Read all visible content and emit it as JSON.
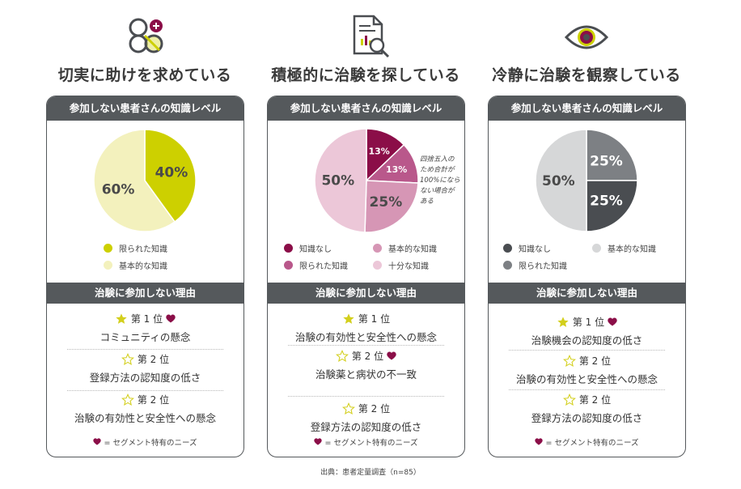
{
  "colors": {
    "card_border": "#55595c",
    "header_bg": "#55595c",
    "lime": "#cdd000",
    "pale_lime": "#f3f1bd",
    "plum": "#8b0e48",
    "mauve": "#b9588b",
    "rose": "#d696b5",
    "pale_rose": "#ecc7d8",
    "dark_gray": "#4a4d51",
    "mid_gray": "#7d8084",
    "light_gray": "#d6d7d8",
    "star": "#d3cf1c"
  },
  "source": "出典：患者定量調査（n=85）",
  "segments": [
    {
      "icon": "people-plus-icon",
      "heading": "切実に助けを求めている",
      "card_header": "参加しない患者さんの知識レベル",
      "reasons_header": "治験に参加しない理由",
      "note": "= セグメント特有のニーズ",
      "legend": [
        {
          "label": "限られた知識",
          "color": "#cdd000"
        },
        {
          "label": "基本的な知識",
          "color": "#f3f1bd"
        }
      ],
      "reasons": [
        {
          "rank": "第 1 位",
          "text": "コミュニティの懸念",
          "filled_star": true,
          "heart": true
        },
        {
          "rank": "第 2 位",
          "text": "登録方法の認知度の低さ",
          "filled_star": false,
          "heart": false
        },
        {
          "rank": "第 2 位",
          "text": "治験の有効性と安全性への懸念",
          "filled_star": false,
          "heart": false
        }
      ]
    },
    {
      "icon": "document-search-icon",
      "heading": "積極的に治験を探している",
      "card_header": "参加しない患者さんの知識レベル",
      "reasons_header": "治験に参加しない理由",
      "note": "= セグメント特有のニーズ",
      "pie_note": "四捨五入の\nため合計が\n100%になら\nない場合が\nある",
      "legend": [
        {
          "label": "知識なし",
          "color": "#8b0e48"
        },
        {
          "label": "基本的な知識",
          "color": "#d696b5"
        },
        {
          "label": "限られた知識",
          "color": "#b9588b"
        },
        {
          "label": "十分な知識",
          "color": "#ecc7d8"
        }
      ],
      "reasons": [
        {
          "rank": "第 1 位",
          "text": "治験の有効性と安全性への懸念",
          "filled_star": true,
          "heart": false
        },
        {
          "rank": "第 2 位",
          "text": "治験薬と病状の不一致",
          "filled_star": false,
          "heart": true
        },
        {
          "rank": "第 2 位",
          "text": "登録方法の認知度の低さ",
          "filled_star": false,
          "heart": false
        }
      ]
    },
    {
      "icon": "eye-icon",
      "heading": "冷静に治験を観察している",
      "card_header": "参加しない患者さんの知識レベル",
      "reasons_header": "治験に参加しない理由",
      "note": "= セグメント特有のニーズ",
      "legend": [
        {
          "label": "知識なし",
          "color": "#4a4d51"
        },
        {
          "label": "基本的な知識",
          "color": "#d6d7d8"
        },
        {
          "label": "限られた知識",
          "color": "#7d8084"
        }
      ],
      "reasons": [
        {
          "rank": "第 1 位",
          "text": "治験機会の認知度の低さ",
          "filled_star": true,
          "heart": true
        },
        {
          "rank": "第 2 位",
          "text": "治験の有効性と安全性への懸念",
          "filled_star": false,
          "heart": false
        },
        {
          "rank": "第 2 位",
          "text": "登録方法の認知度の低さ",
          "filled_star": false,
          "heart": false
        }
      ]
    }
  ],
  "chart_data": [
    {
      "type": "pie",
      "title": "参加しない患者さんの知識レベル",
      "slices": [
        {
          "label": "限られた知識",
          "value": 40,
          "display": "40%",
          "color": "#cdd000"
        },
        {
          "label": "基本的な知識",
          "value": 60,
          "display": "60%",
          "color": "#f3f1bd"
        }
      ]
    },
    {
      "type": "pie",
      "title": "参加しない患者さんの知識レベル",
      "slices": [
        {
          "label": "知識なし",
          "value": 13,
          "display": "13%",
          "color": "#8b0e48"
        },
        {
          "label": "限られた知識",
          "value": 13,
          "display": "13%",
          "color": "#b9588b"
        },
        {
          "label": "基本的な知識",
          "value": 25,
          "display": "25%",
          "color": "#d696b5"
        },
        {
          "label": "十分な知識",
          "value": 50,
          "display": "50%",
          "color": "#ecc7d8"
        }
      ]
    },
    {
      "type": "pie",
      "title": "参加しない患者さんの知識レベル",
      "slices": [
        {
          "label": "限られた知識",
          "value": 25,
          "display": "25%",
          "color": "#7d8084"
        },
        {
          "label": "知識なし",
          "value": 25,
          "display": "25%",
          "color": "#4a4d51"
        },
        {
          "label": "基本的な知識",
          "value": 50,
          "display": "50%",
          "color": "#d6d7d8"
        }
      ]
    }
  ]
}
